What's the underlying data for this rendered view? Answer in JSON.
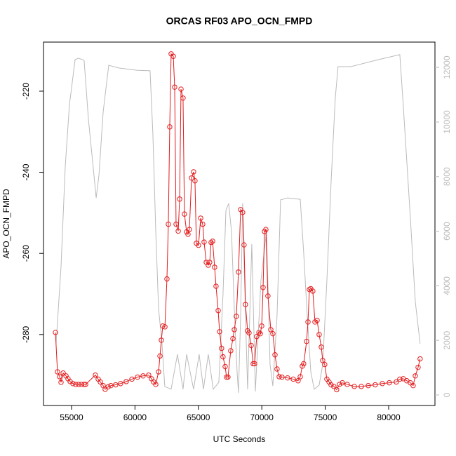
{
  "chart_data": {
    "type": "line",
    "title": "ORCAS RF03 APO_OCN_FMPD",
    "xlabel": "UTC Seconds",
    "ylabel": "APO_OCN_FMPD",
    "xlim": [
      52788,
      83650
    ],
    "xticks": [
      55000,
      60000,
      65000,
      70000,
      75000,
      80000
    ],
    "ylim": [
      -297.5,
      -207.9
    ],
    "yticks": [
      -280,
      -260,
      -240,
      -220
    ],
    "y2lim": [
      -386,
      12930
    ],
    "y2ticks": [
      0,
      2000,
      4000,
      6000,
      8000,
      10000,
      12000
    ],
    "y2tick_color": "#bbbbbb",
    "series": [
      {
        "color": "#e31a1c",
        "markers": true,
        "x": [
          53730,
          53890,
          54060,
          54170,
          54340,
          54560,
          54720,
          54890,
          55110,
          55330,
          55550,
          55770,
          55990,
          56110,
          56880,
          57100,
          57270,
          57490,
          57650,
          57880,
          58100,
          58480,
          58870,
          59310,
          59760,
          60200,
          60640,
          61080,
          61300,
          61470,
          61640,
          61860,
          61970,
          62080,
          62190,
          62360,
          62520,
          62630,
          62740,
          62850,
          63020,
          63130,
          63240,
          63410,
          63520,
          63630,
          63790,
          63900,
          64070,
          64180,
          64290,
          64460,
          64620,
          64730,
          64840,
          65010,
          65180,
          65340,
          65450,
          65620,
          65780,
          65890,
          66000,
          66120,
          66280,
          66390,
          66560,
          66670,
          66830,
          66940,
          67110,
          67220,
          67330,
          67550,
          67720,
          67830,
          67990,
          68160,
          68330,
          68490,
          68600,
          68710,
          68880,
          68990,
          69160,
          69320,
          69430,
          69600,
          69770,
          69880,
          69990,
          70100,
          70210,
          70320,
          70480,
          70710,
          70870,
          71040,
          71200,
          71370,
          71590,
          72030,
          72480,
          72860,
          73030,
          73190,
          73300,
          73530,
          73640,
          73750,
          73860,
          74020,
          74190,
          74360,
          74520,
          74690,
          74800,
          74960,
          75130,
          75300,
          75460,
          75680,
          75900,
          76120,
          76350,
          76730,
          77290,
          77840,
          78390,
          78940,
          79500,
          80050,
          80600,
          80880,
          81150,
          81430,
          81710,
          81930,
          82100,
          82320,
          82480
        ],
        "values": [
          -279.5,
          -289.2,
          -290.4,
          -291.8,
          -289.5,
          -290.2,
          -290.9,
          -291.6,
          -292.1,
          -292.3,
          -292.3,
          -292.3,
          -292.3,
          -292.3,
          -290.0,
          -291.0,
          -291.7,
          -292.6,
          -293.5,
          -292.9,
          -292.6,
          -292.4,
          -292.1,
          -291.6,
          -291.0,
          -290.5,
          -290.2,
          -290.0,
          -290.9,
          -291.7,
          -292.3,
          -289.2,
          -285.3,
          -281.4,
          -277.9,
          -278.1,
          -266.3,
          -252.8,
          -228.8,
          -210.8,
          -211.4,
          -219.0,
          -252.8,
          -254.5,
          -246.6,
          -219.5,
          -221.7,
          -250.3,
          -254.7,
          -255.3,
          -254.1,
          -241.4,
          -239.9,
          -242.1,
          -257.5,
          -258.0,
          -251.3,
          -252.8,
          -257.2,
          -262.2,
          -262.9,
          -262.2,
          -257.3,
          -257.0,
          -263.4,
          -268.1,
          -274.1,
          -279.3,
          -283.4,
          -285.5,
          -287.9,
          -290.5,
          -290.5,
          -284.0,
          -281.0,
          -278.8,
          -275.5,
          -264.6,
          -249.2,
          -249.9,
          -257.9,
          -272.6,
          -279.1,
          -279.6,
          -282.7,
          -287.2,
          -287.2,
          -280.5,
          -279.5,
          -279.8,
          -277.9,
          -268.4,
          -254.6,
          -254.1,
          -270.5,
          -278.8,
          -279.8,
          -285.0,
          -288.5,
          -290.4,
          -290.5,
          -290.7,
          -291.0,
          -291.4,
          -290.4,
          -287.8,
          -287.2,
          -281.7,
          -276.9,
          -268.9,
          -268.7,
          -269.3,
          -276.9,
          -276.5,
          -280.0,
          -283.1,
          -286.4,
          -287.4,
          -291.0,
          -291.7,
          -292.4,
          -292.8,
          -293.6,
          -292.3,
          -291.9,
          -292.3,
          -292.8,
          -292.8,
          -292.6,
          -292.4,
          -292.1,
          -291.9,
          -291.7,
          -291.0,
          -290.9,
          -291.4,
          -291.9,
          -292.6,
          -290.2,
          -288.1,
          -286.0
        ]
      },
      {
        "color": "#bbbbbb",
        "axis": "y2",
        "markers": false,
        "x": [
          53780,
          54170,
          54500,
          54830,
          55280,
          55550,
          55990,
          56330,
          56660,
          56940,
          57160,
          57490,
          57930,
          58760,
          60140,
          61190,
          61410,
          61640,
          61860,
          62130,
          62350,
          62850,
          63350,
          63790,
          64070,
          64620,
          65060,
          65400,
          65780,
          66170,
          66610,
          66940,
          67170,
          67390,
          67610,
          67830,
          68050,
          68160,
          68330,
          68490,
          68710,
          68880,
          69210,
          69490,
          69930,
          70370,
          70650,
          70870,
          71200,
          71480,
          72030,
          73030,
          73300,
          73580,
          73860,
          74130,
          74520,
          74800,
          75130,
          75460,
          75790,
          76010,
          77010,
          79220,
          80880,
          81150,
          81710,
          82100,
          82480
        ],
        "values": [
          1880,
          4700,
          8350,
          10620,
          12290,
          12340,
          12260,
          10100,
          8560,
          7220,
          8050,
          10360,
          12080,
          11980,
          11900,
          11880,
          9590,
          5990,
          3160,
          1880,
          310,
          210,
          1490,
          210,
          1490,
          210,
          1490,
          210,
          1490,
          210,
          460,
          3680,
          6760,
          7020,
          5990,
          3160,
          850,
          80,
          2900,
          7020,
          2900,
          210,
          5530,
          130,
          4190,
          5990,
          1110,
          330,
          2900,
          7150,
          7220,
          7170,
          5220,
          2900,
          850,
          210,
          360,
          1110,
          4190,
          7790,
          10870,
          12030,
          12030,
          12290,
          12470,
          10620,
          6500,
          3420,
          1880
        ]
      }
    ]
  }
}
